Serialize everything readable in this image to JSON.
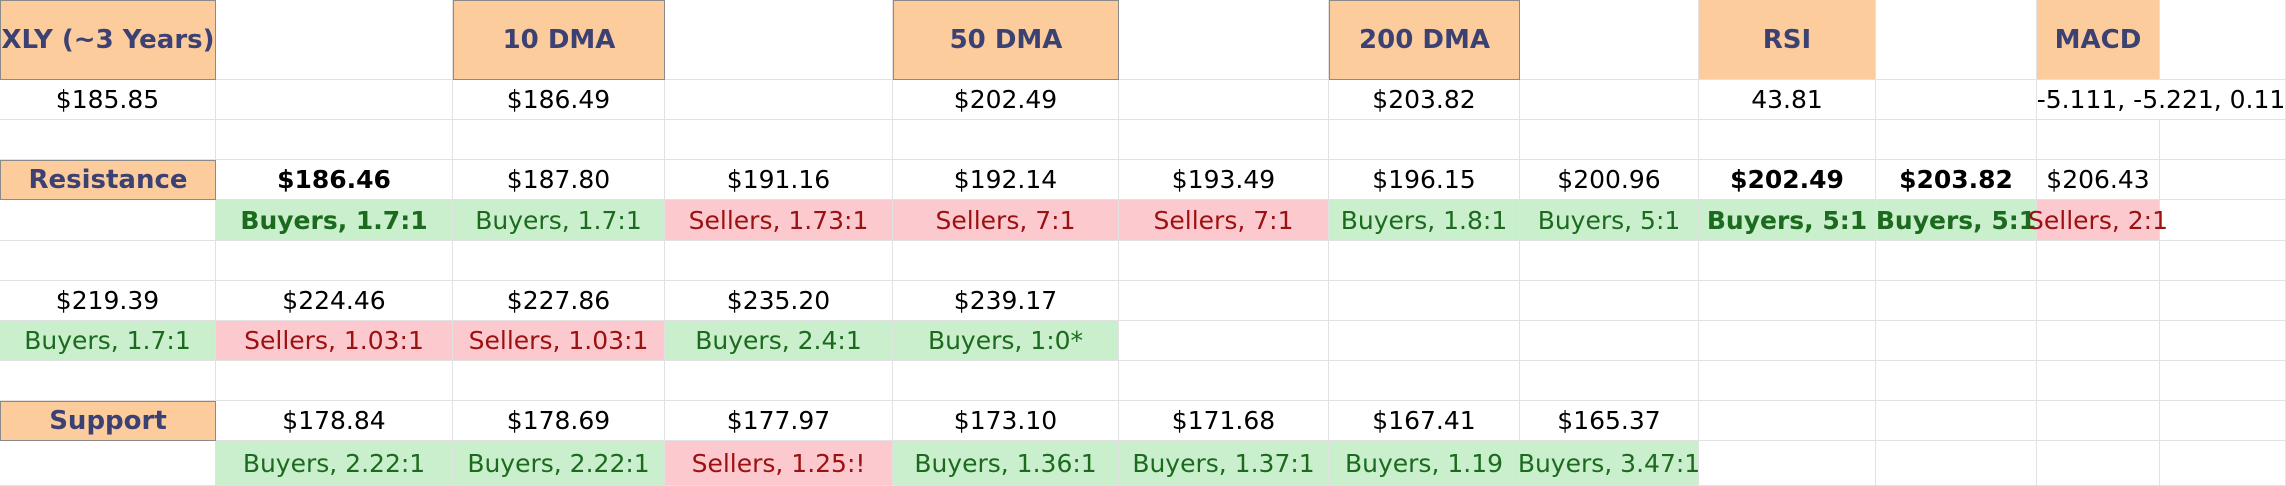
{
  "colors": {
    "header_bg": "#fdcc9c",
    "header_text": "#3c4173",
    "buyers_bg": "#c9efcc",
    "buyers_text": "#1b6a1e",
    "sellers_bg": "#fcc9ce",
    "sellers_text": "#9b1010",
    "grid": "#e2e2e2"
  },
  "rows": [
    [
      {
        "text": "XLY (~3 Years)",
        "style": "hdr boxed"
      },
      {
        "text": ""
      },
      {
        "text": "10 DMA",
        "style": "hdr boxed"
      },
      {
        "text": ""
      },
      {
        "text": "50 DMA",
        "style": "hdr boxed"
      },
      {
        "text": ""
      },
      {
        "text": "200 DMA",
        "style": "hdr boxed"
      },
      {
        "text": ""
      },
      {
        "text": "RSI",
        "style": "hdr"
      },
      {
        "text": ""
      },
      {
        "text": "MACD",
        "style": "hdr"
      }
    ],
    [
      {
        "text": "$185.85"
      },
      {
        "text": ""
      },
      {
        "text": "$186.49"
      },
      {
        "text": ""
      },
      {
        "text": "$202.49"
      },
      {
        "text": ""
      },
      {
        "text": "$203.82"
      },
      {
        "text": ""
      },
      {
        "text": "43.81"
      },
      {
        "text": ""
      },
      {
        "text": "-5.111, -5.221, 0.11",
        "span": 2
      }
    ],
    [],
    [
      {
        "text": "Resistance",
        "style": "hdr boxed"
      },
      {
        "text": "$186.46",
        "style": "bold"
      },
      {
        "text": "$187.80"
      },
      {
        "text": "$191.16"
      },
      {
        "text": "$192.14"
      },
      {
        "text": "$193.49"
      },
      {
        "text": "$196.15"
      },
      {
        "text": "$200.96"
      },
      {
        "text": "$202.49",
        "style": "bold"
      },
      {
        "text": "$203.82",
        "style": "bold"
      },
      {
        "text": "$206.43"
      }
    ],
    [
      {
        "text": ""
      },
      {
        "text": "Buyers, 1.7:1",
        "style": "buy bold"
      },
      {
        "text": "Buyers, 1.7:1",
        "style": "buy"
      },
      {
        "text": "Sellers, 1.73:1",
        "style": "sell"
      },
      {
        "text": "Sellers, 7:1",
        "style": "sell"
      },
      {
        "text": "Sellers, 7:1",
        "style": "sell"
      },
      {
        "text": "Buyers, 1.8:1",
        "style": "buy"
      },
      {
        "text": "Buyers, 5:1",
        "style": "buy"
      },
      {
        "text": "Buyers, 5:1",
        "style": "buy bold"
      },
      {
        "text": "Buyers, 5:1",
        "style": "buy bold"
      },
      {
        "text": "Sellers, 2:1",
        "style": "sell"
      }
    ],
    [],
    [
      {
        "text": "$219.39"
      },
      {
        "text": "$224.46"
      },
      {
        "text": "$227.86"
      },
      {
        "text": "$235.20"
      },
      {
        "text": "$239.17"
      }
    ],
    [
      {
        "text": "Buyers, 1.7:1",
        "style": "buy"
      },
      {
        "text": "Sellers, 1.03:1",
        "style": "sell"
      },
      {
        "text": "Sellers, 1.03:1",
        "style": "sell"
      },
      {
        "text": "Buyers, 2.4:1",
        "style": "buy"
      },
      {
        "text": "Buyers, 1:0*",
        "style": "buy"
      }
    ],
    [],
    [
      {
        "text": "Support",
        "style": "hdr boxed"
      },
      {
        "text": "$178.84"
      },
      {
        "text": "$178.69"
      },
      {
        "text": "$177.97"
      },
      {
        "text": "$173.10"
      },
      {
        "text": "$171.68"
      },
      {
        "text": "$167.41"
      },
      {
        "text": "$165.37"
      }
    ],
    [
      {
        "text": ""
      },
      {
        "text": "Buyers, 2.22:1",
        "style": "buy"
      },
      {
        "text": "Buyers, 2.22:1",
        "style": "buy"
      },
      {
        "text": "Sellers, 1.25:!",
        "style": "sell"
      },
      {
        "text": "Buyers, 1.36:1",
        "style": "buy"
      },
      {
        "text": "Buyers, 1.37:1",
        "style": "buy"
      },
      {
        "text": "Buyers, 1.19",
        "style": "buy"
      },
      {
        "text": "Buyers, 3.47:1",
        "style": "buy"
      }
    ]
  ]
}
